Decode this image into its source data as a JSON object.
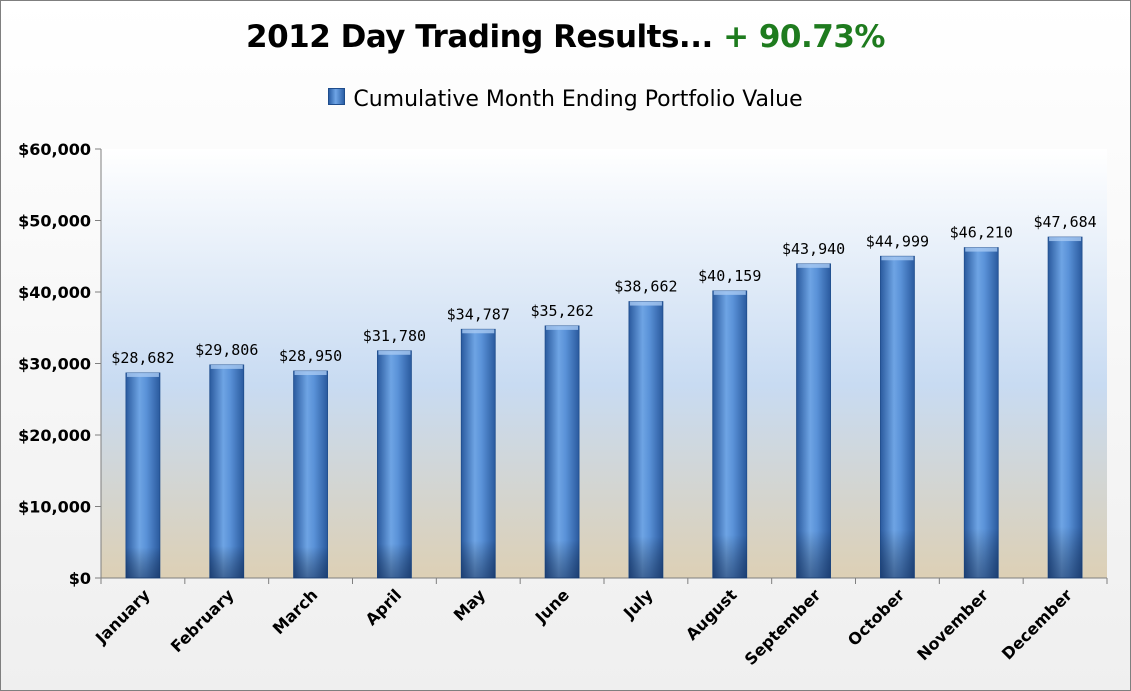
{
  "title_main": "2012 Day Trading Results...",
  "title_highlight": "+ 90.73%",
  "colors": {
    "title_highlight": "#1e7b1e",
    "bar": "#4a86d4",
    "bar_dark": "#234f8f",
    "plot_top": "#ffffff",
    "plot_mid": "#c6d9f1",
    "plot_bottom": "#ddd0b8"
  },
  "chart_data": {
    "type": "bar",
    "categories": [
      "January",
      "February",
      "March",
      "April",
      "May",
      "June",
      "July",
      "August",
      "September",
      "October",
      "November",
      "December"
    ],
    "series": [
      {
        "name": "Cumulative Month Ending Portfolio Value",
        "values": [
          28682,
          29806,
          28950,
          31780,
          34787,
          35262,
          38662,
          40159,
          43940,
          44999,
          46210,
          47684
        ],
        "data_labels": [
          "$28,682",
          "$29,806",
          "$28,950",
          "$31,780",
          "$34,787",
          "$35,262",
          "$38,662",
          "$40,159",
          "$43,940",
          "$44,999",
          "$46,210",
          "$47,684"
        ]
      }
    ],
    "ylim": [
      0,
      60000
    ],
    "yticks": [
      0,
      10000,
      20000,
      30000,
      40000,
      50000,
      60000
    ],
    "ytick_labels": [
      "$0",
      "$10,000",
      "$20,000",
      "$30,000",
      "$40,000",
      "$50,000",
      "$60,000"
    ],
    "legend_position": "top",
    "grid": false
  }
}
